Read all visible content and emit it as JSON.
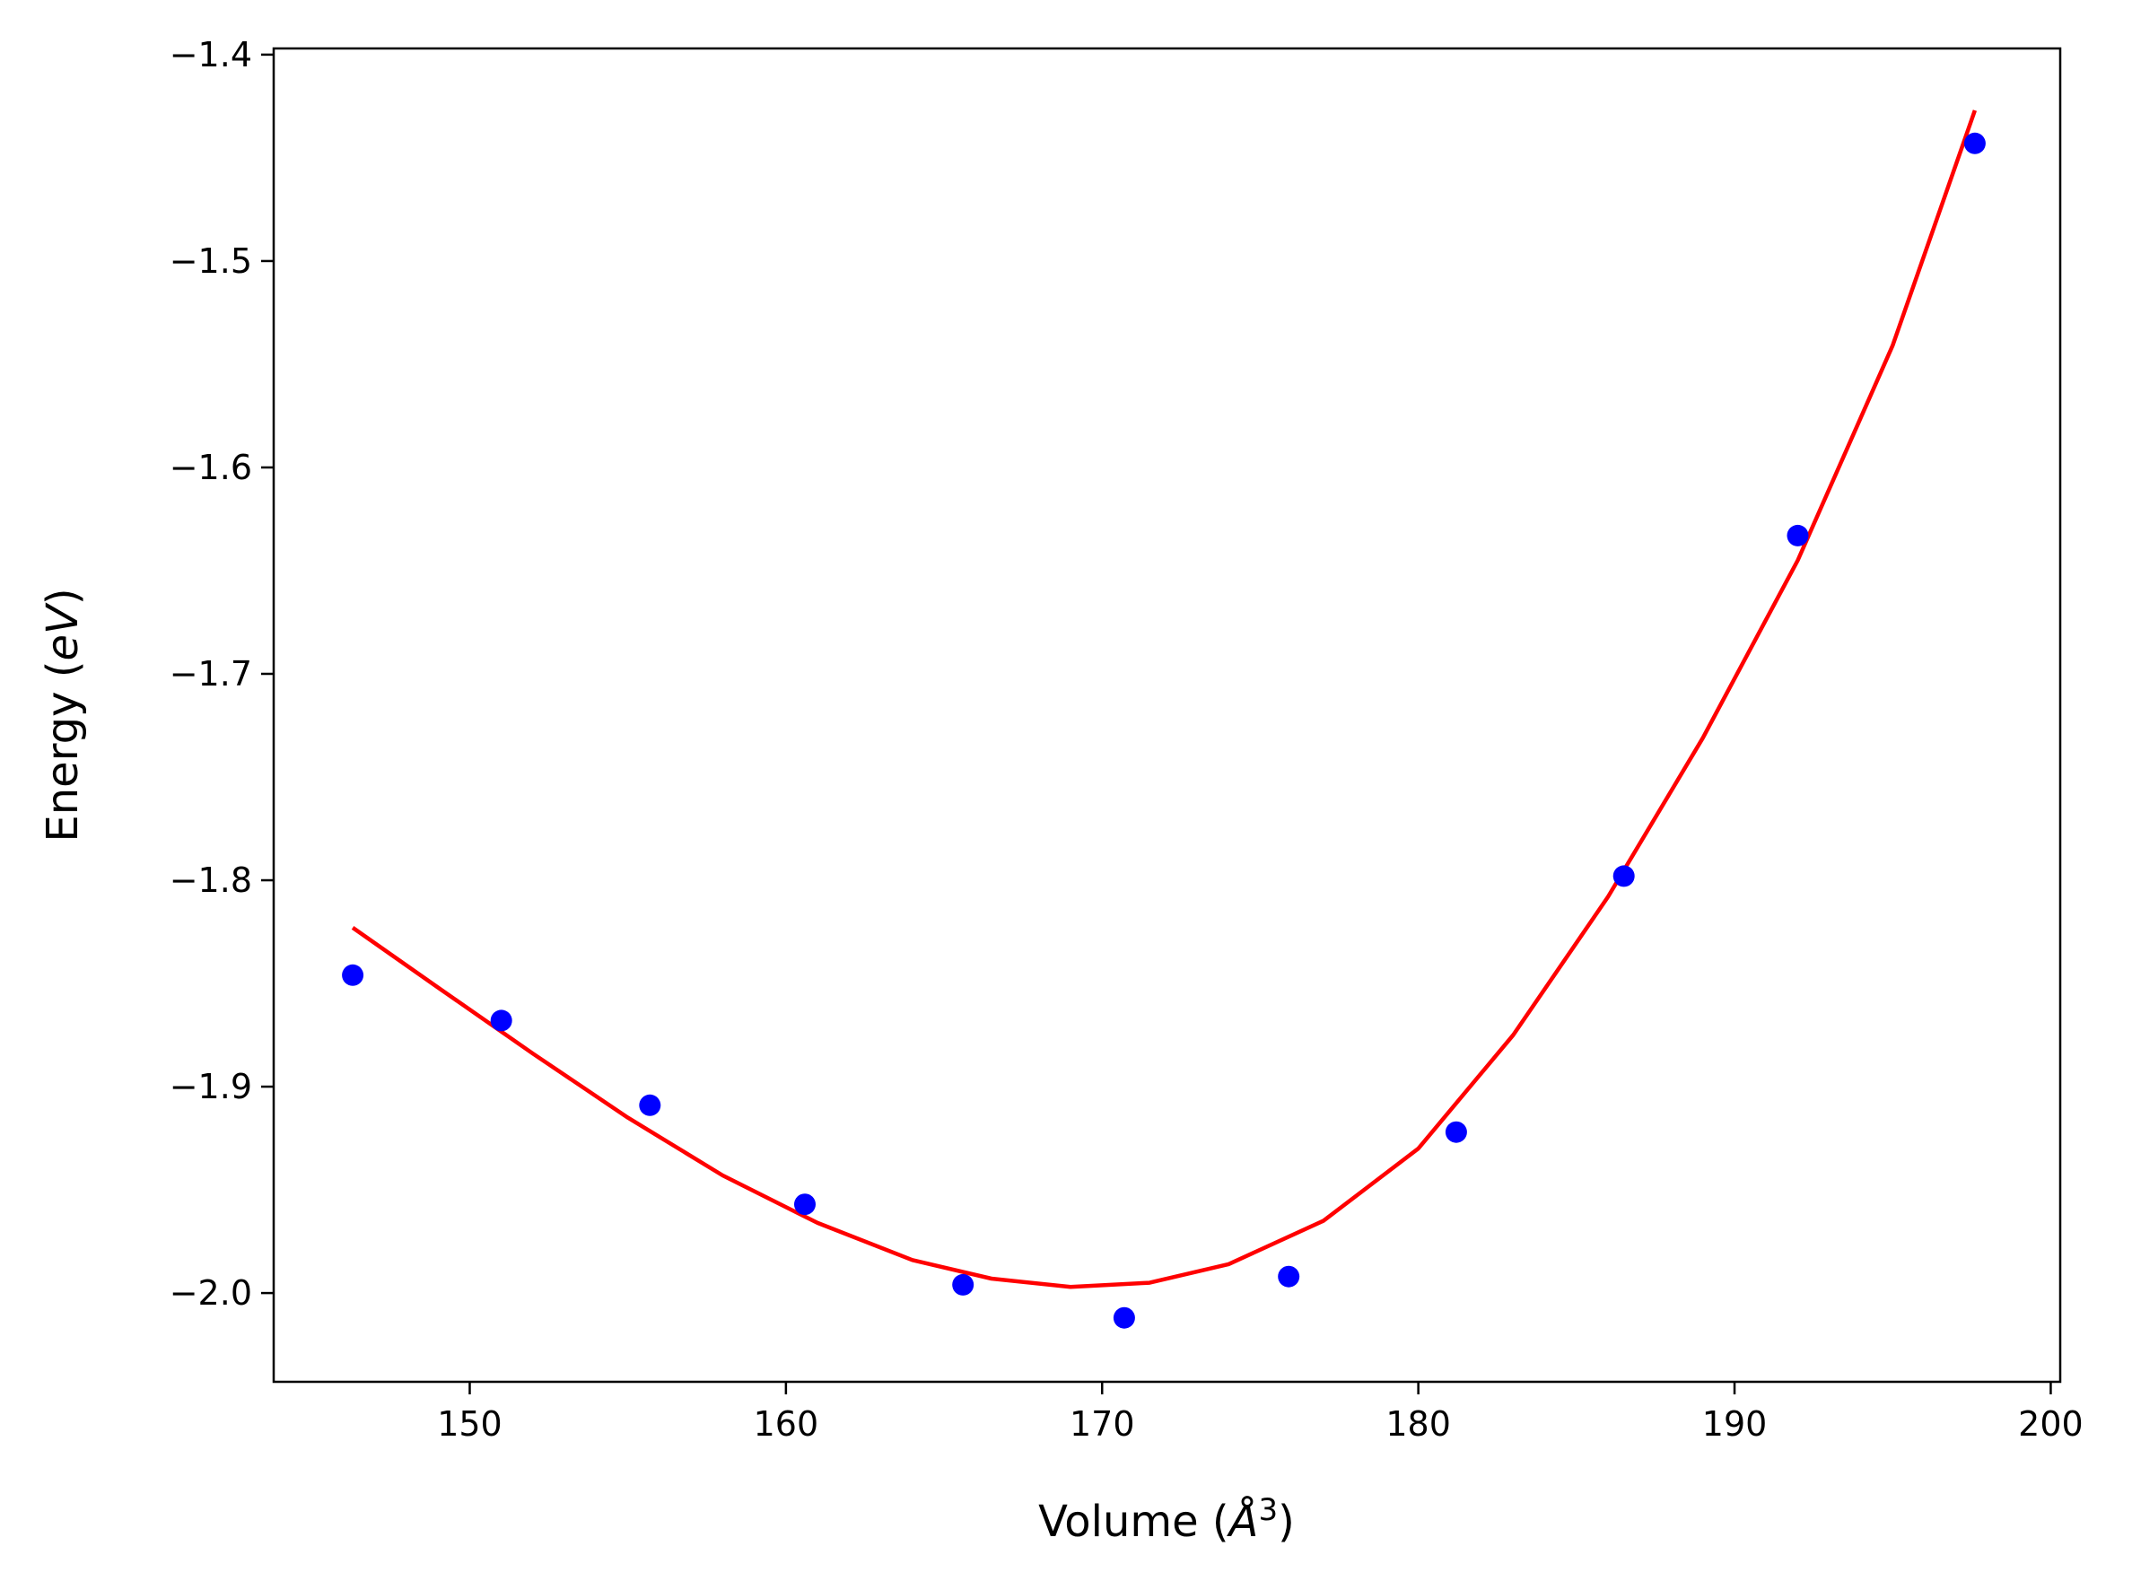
{
  "chart_data": {
    "type": "scatter",
    "title": "",
    "xlabel_main": "Volume (",
    "xlabel_unit": "Å",
    "xlabel_exp": "3",
    "xlabel_close": ")",
    "ylabel_main": "Energy (",
    "ylabel_unit": "eV",
    "ylabel_close": ")",
    "xlim": [
      143.8,
      200.3
    ],
    "ylim": [
      -2.043,
      -1.397
    ],
    "xticks": [
      150,
      160,
      170,
      180,
      190,
      200
    ],
    "xtick_labels": [
      "150",
      "160",
      "170",
      "180",
      "190",
      "200"
    ],
    "yticks": [
      -2.0,
      -1.9,
      -1.8,
      -1.7,
      -1.6,
      -1.5,
      -1.4
    ],
    "ytick_labels": [
      "−2.0",
      "−1.9",
      "−1.8",
      "−1.7",
      "−1.6",
      "−1.5",
      "−1.4"
    ],
    "grid": false,
    "series": [
      {
        "kind": "points",
        "color": "#0000ff",
        "x": [
          146.3,
          151.0,
          155.7,
          160.6,
          165.6,
          170.7,
          175.9,
          181.2,
          186.5,
          192.0,
          197.6
        ],
        "y": [
          -1.846,
          -1.868,
          -1.909,
          -1.957,
          -1.996,
          -2.012,
          -1.992,
          -1.922,
          -1.798,
          -1.633,
          -1.443
        ]
      },
      {
        "kind": "fit-line",
        "color": "#ff0000",
        "x": [
          146.3,
          149.0,
          152.0,
          155.0,
          158.0,
          161.0,
          164.0,
          166.5,
          169.0,
          171.5,
          174.0,
          177.0,
          180.0,
          183.0,
          186.0,
          189.0,
          192.0,
          195.0,
          197.6
        ],
        "y": [
          -1.823,
          -1.852,
          -1.884,
          -1.915,
          -1.943,
          -1.966,
          -1.984,
          -1.993,
          -1.997,
          -1.995,
          -1.986,
          -1.965,
          -1.93,
          -1.875,
          -1.808,
          -1.731,
          -1.645,
          -1.541,
          -1.427
        ]
      }
    ]
  }
}
